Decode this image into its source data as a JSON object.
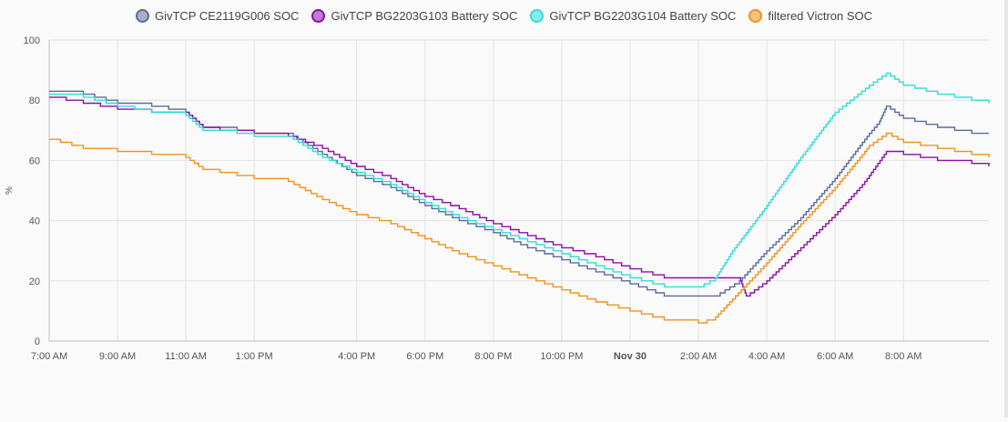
{
  "colors": {
    "gridline": "#e3e3e3",
    "axis": "#555555",
    "series_1": "#5b6a9e",
    "series_2": "#8b0fa8",
    "series_3": "#2fdcd6",
    "series_4": "#f0921e"
  },
  "chart_data": {
    "type": "line",
    "ylabel": "%",
    "ylim": [
      0,
      100
    ],
    "xlim": [
      7,
      34.5
    ],
    "y_ticks": [
      0,
      20,
      40,
      60,
      80,
      100
    ],
    "x_ticks": [
      {
        "x": 7,
        "label": "7:00 AM",
        "bold": false
      },
      {
        "x": 9,
        "label": "9:00 AM",
        "bold": false
      },
      {
        "x": 11,
        "label": "11:00 AM",
        "bold": false
      },
      {
        "x": 13,
        "label": "1:00 PM",
        "bold": false
      },
      {
        "x": 16,
        "label": "4:00 PM",
        "bold": false
      },
      {
        "x": 18,
        "label": "6:00 PM",
        "bold": false
      },
      {
        "x": 20,
        "label": "8:00 PM",
        "bold": false
      },
      {
        "x": 22,
        "label": "10:00 PM",
        "bold": false
      },
      {
        "x": 24,
        "label": "Nov 30",
        "bold": true
      },
      {
        "x": 26,
        "label": "2:00 AM",
        "bold": false
      },
      {
        "x": 28,
        "label": "4:00 AM",
        "bold": false
      },
      {
        "x": 30,
        "label": "6:00 AM",
        "bold": false
      },
      {
        "x": 32,
        "label": "8:00 AM",
        "bold": false
      }
    ],
    "legend_position": "top",
    "grid": true,
    "series": [
      {
        "name": "GivTCP CE2119G006 SOC",
        "color": "#5b6a9e",
        "points": [
          [
            7,
            83
          ],
          [
            8,
            82
          ],
          [
            9,
            79
          ],
          [
            10,
            78
          ],
          [
            11,
            76
          ],
          [
            11.5,
            71
          ],
          [
            12,
            71
          ],
          [
            13,
            69
          ],
          [
            14,
            69
          ],
          [
            15,
            62
          ],
          [
            16,
            55
          ],
          [
            17,
            51
          ],
          [
            18,
            45
          ],
          [
            19,
            40
          ],
          [
            20,
            36
          ],
          [
            21,
            31
          ],
          [
            22,
            27
          ],
          [
            23,
            23
          ],
          [
            24,
            19
          ],
          [
            25,
            15
          ],
          [
            26,
            15
          ],
          [
            26.5,
            15
          ],
          [
            27.2,
            20
          ],
          [
            28,
            30
          ],
          [
            29,
            41
          ],
          [
            30,
            54
          ],
          [
            30.8,
            66
          ],
          [
            31,
            69
          ],
          [
            31.3,
            73
          ],
          [
            31.5,
            78
          ],
          [
            32,
            74
          ],
          [
            33,
            71
          ],
          [
            34,
            69
          ],
          [
            34.5,
            69
          ]
        ]
      },
      {
        "name": "GivTCP BG2203G103 Battery SOC",
        "color": "#8b0fa8",
        "points": [
          [
            7,
            81
          ],
          [
            8,
            79
          ],
          [
            9,
            77
          ],
          [
            10,
            76
          ],
          [
            11,
            76
          ],
          [
            11.5,
            71
          ],
          [
            12,
            70
          ],
          [
            13,
            69
          ],
          [
            14,
            68
          ],
          [
            15,
            64
          ],
          [
            16,
            58
          ],
          [
            17,
            54
          ],
          [
            18,
            48
          ],
          [
            19,
            44
          ],
          [
            20,
            39
          ],
          [
            21,
            35
          ],
          [
            22,
            31
          ],
          [
            23,
            28
          ],
          [
            24,
            24
          ],
          [
            25,
            21
          ],
          [
            26,
            21
          ],
          [
            26.5,
            21
          ],
          [
            27.2,
            21
          ],
          [
            27.4,
            15
          ],
          [
            28,
            20
          ],
          [
            29,
            31
          ],
          [
            30,
            42
          ],
          [
            30.8,
            52
          ],
          [
            31,
            55
          ],
          [
            31.5,
            63
          ],
          [
            32,
            62
          ],
          [
            33,
            60
          ],
          [
            34,
            59
          ],
          [
            34.5,
            58
          ]
        ]
      },
      {
        "name": "GivTCP BG2203G104 Battery SOC",
        "color": "#2fdcd6",
        "points": [
          [
            7,
            82
          ],
          [
            8,
            81
          ],
          [
            9,
            78
          ],
          [
            10,
            76
          ],
          [
            11,
            75
          ],
          [
            11.5,
            70
          ],
          [
            12,
            70
          ],
          [
            13,
            68
          ],
          [
            14,
            68
          ],
          [
            15,
            61
          ],
          [
            16,
            56
          ],
          [
            17,
            52
          ],
          [
            18,
            46
          ],
          [
            19,
            41
          ],
          [
            20,
            37
          ],
          [
            21,
            33
          ],
          [
            22,
            29
          ],
          [
            23,
            25
          ],
          [
            24,
            21
          ],
          [
            25,
            18
          ],
          [
            26,
            18
          ],
          [
            26.5,
            21
          ],
          [
            27,
            30
          ],
          [
            28,
            45
          ],
          [
            29,
            61
          ],
          [
            30,
            76
          ],
          [
            31,
            85
          ],
          [
            31.5,
            89
          ],
          [
            32,
            85
          ],
          [
            33,
            82
          ],
          [
            34,
            80
          ],
          [
            34.5,
            79
          ]
        ]
      },
      {
        "name": "filtered Victron SOC",
        "color": "#f0921e",
        "points": [
          [
            7,
            67
          ],
          [
            8,
            64
          ],
          [
            9,
            63
          ],
          [
            10,
            62
          ],
          [
            11,
            61
          ],
          [
            11.5,
            57
          ],
          [
            12,
            56
          ],
          [
            13,
            54
          ],
          [
            14,
            53
          ],
          [
            15,
            47
          ],
          [
            16,
            42
          ],
          [
            17,
            39
          ],
          [
            18,
            34
          ],
          [
            19,
            29
          ],
          [
            20,
            25
          ],
          [
            21,
            21
          ],
          [
            22,
            17
          ],
          [
            23,
            13
          ],
          [
            24,
            10
          ],
          [
            25,
            7
          ],
          [
            26,
            6
          ],
          [
            26.5,
            8
          ],
          [
            27,
            14
          ],
          [
            28,
            26
          ],
          [
            29,
            39
          ],
          [
            30,
            51
          ],
          [
            30.8,
            62
          ],
          [
            31,
            65
          ],
          [
            31.5,
            69
          ],
          [
            32,
            66
          ],
          [
            33,
            64
          ],
          [
            34,
            62
          ],
          [
            34.5,
            61
          ]
        ]
      }
    ]
  }
}
